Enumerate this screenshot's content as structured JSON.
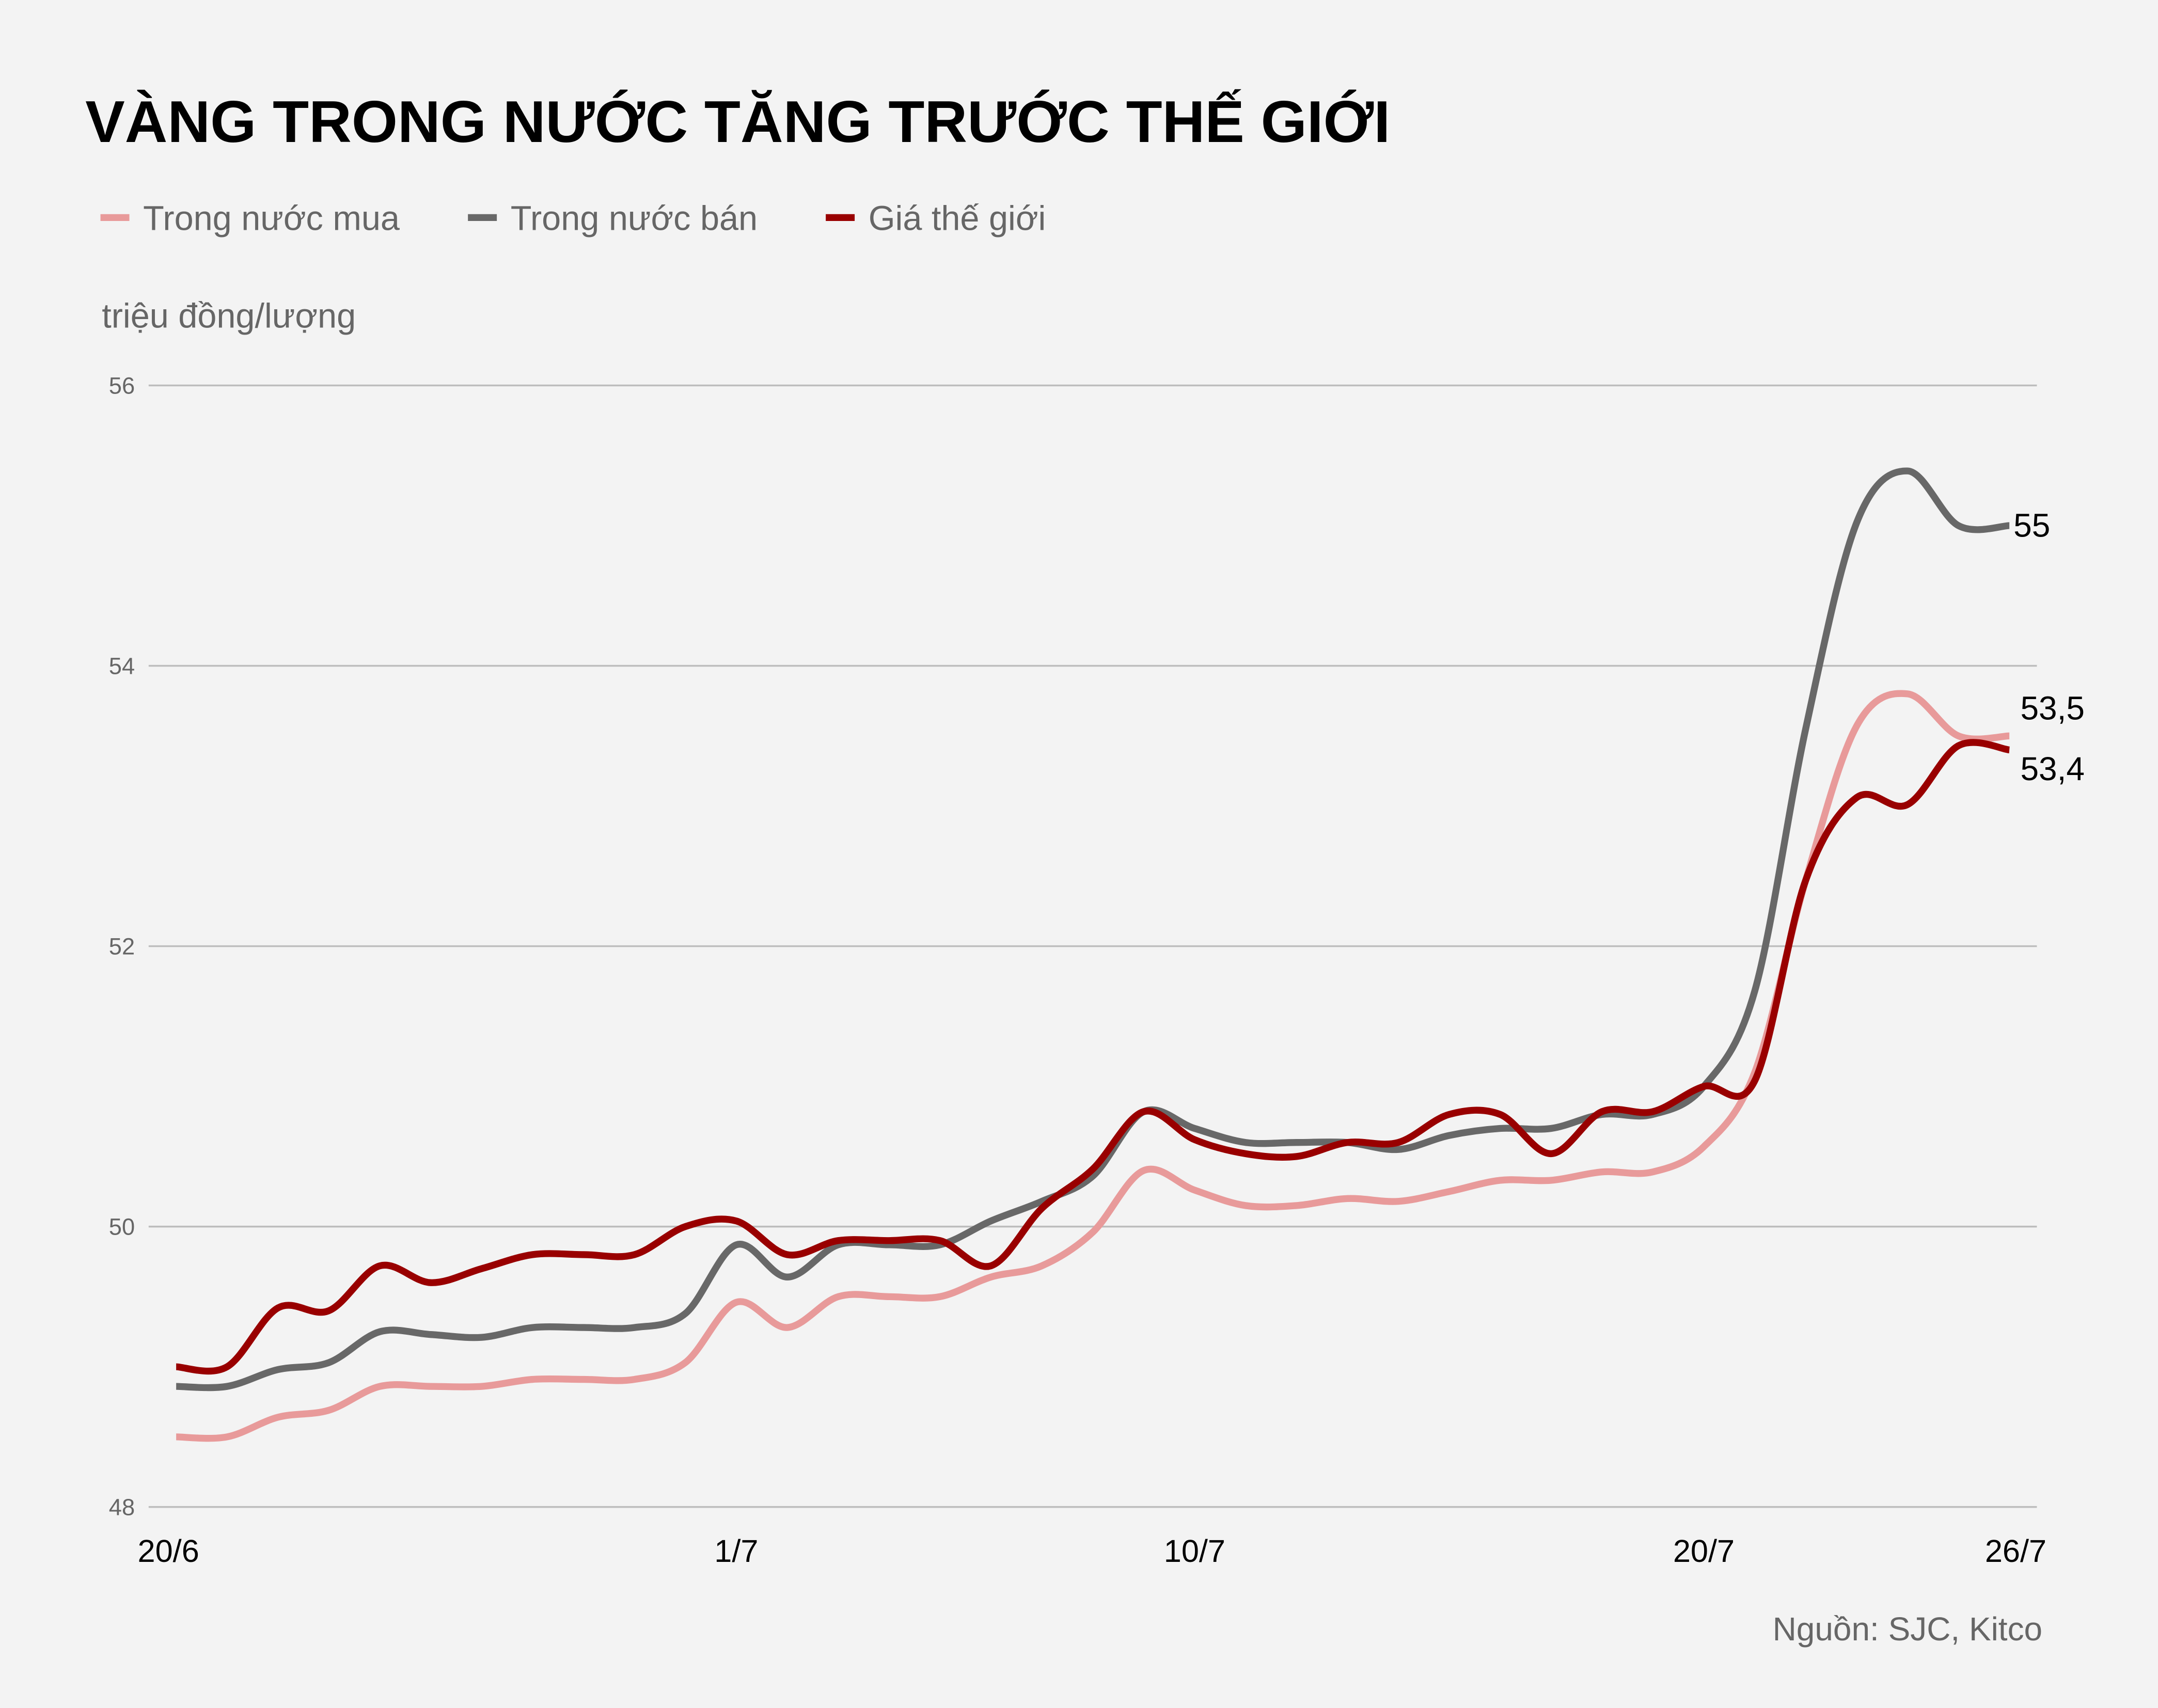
{
  "chart_data": {
    "type": "line",
    "title": "VÀNG TRONG NƯỚC TĂNG TRƯỚC THẾ GIỚI",
    "ylabel": "triệu đồng/lượng",
    "source": "Nguồn: SJC, Kitco",
    "ylim": [
      48,
      56
    ],
    "yticks": [
      "48",
      "50",
      "52",
      "54",
      "56"
    ],
    "ytick_values": [
      48,
      50,
      52,
      54,
      56
    ],
    "grid": true,
    "legend_placement": "top-left",
    "x_start": "20/6",
    "x_end": "26/7",
    "x": [
      "20/6",
      "21/6",
      "22/6",
      "23/6",
      "24/6",
      "25/6",
      "26/6",
      "27/6",
      "28/6",
      "29/6",
      "30/6",
      "1/7",
      "2/7",
      "3/7",
      "4/7",
      "5/7",
      "6/7",
      "7/7",
      "8/7",
      "9/7",
      "10/7",
      "11/7",
      "12/7",
      "13/7",
      "14/7",
      "15/7",
      "16/7",
      "17/7",
      "18/7",
      "19/7",
      "20/7",
      "21/7",
      "22/7",
      "23/7",
      "24/7",
      "25/7",
      "26/7"
    ],
    "xticks": [
      "20/6",
      "1/7",
      "10/7",
      "20/7",
      "26/7"
    ],
    "series": [
      {
        "name": "Trong nước mua",
        "color": "#e89a9a",
        "end_label": "53,5",
        "values": [
          48.5,
          48.5,
          48.64,
          48.69,
          48.86,
          48.86,
          48.86,
          48.91,
          48.91,
          48.91,
          49.03,
          49.46,
          49.28,
          49.5,
          49.5,
          49.5,
          49.64,
          49.72,
          49.96,
          50.4,
          50.26,
          50.15,
          50.15,
          50.2,
          50.18,
          50.25,
          50.33,
          50.33,
          50.39,
          50.39,
          50.57,
          51.1,
          52.47,
          53.57,
          53.8,
          53.5,
          53.5
        ]
      },
      {
        "name": "Trong nước bán",
        "color": "#686868",
        "end_label": "55",
        "values": [
          48.86,
          48.86,
          48.98,
          49.03,
          49.25,
          49.23,
          49.21,
          49.28,
          49.28,
          49.28,
          49.38,
          49.87,
          49.64,
          49.87,
          49.87,
          49.87,
          50.04,
          50.18,
          50.36,
          50.82,
          50.7,
          50.6,
          50.6,
          50.6,
          50.55,
          50.65,
          50.7,
          50.7,
          50.8,
          50.8,
          51.0,
          51.68,
          53.55,
          55.02,
          55.39,
          55.0,
          55.0
        ]
      },
      {
        "name": "Giá thế giới",
        "color": "#990000",
        "end_label": "53,4",
        "values": [
          49.0,
          49.0,
          49.42,
          49.4,
          49.72,
          49.6,
          49.7,
          49.8,
          49.8,
          49.8,
          50.0,
          50.04,
          49.8,
          49.9,
          49.9,
          49.9,
          49.72,
          50.13,
          50.41,
          50.82,
          50.62,
          50.52,
          50.5,
          50.6,
          50.6,
          50.8,
          50.8,
          50.52,
          50.82,
          50.82,
          51.0,
          51.04,
          52.47,
          53.06,
          53.01,
          53.43,
          53.4
        ]
      }
    ]
  }
}
